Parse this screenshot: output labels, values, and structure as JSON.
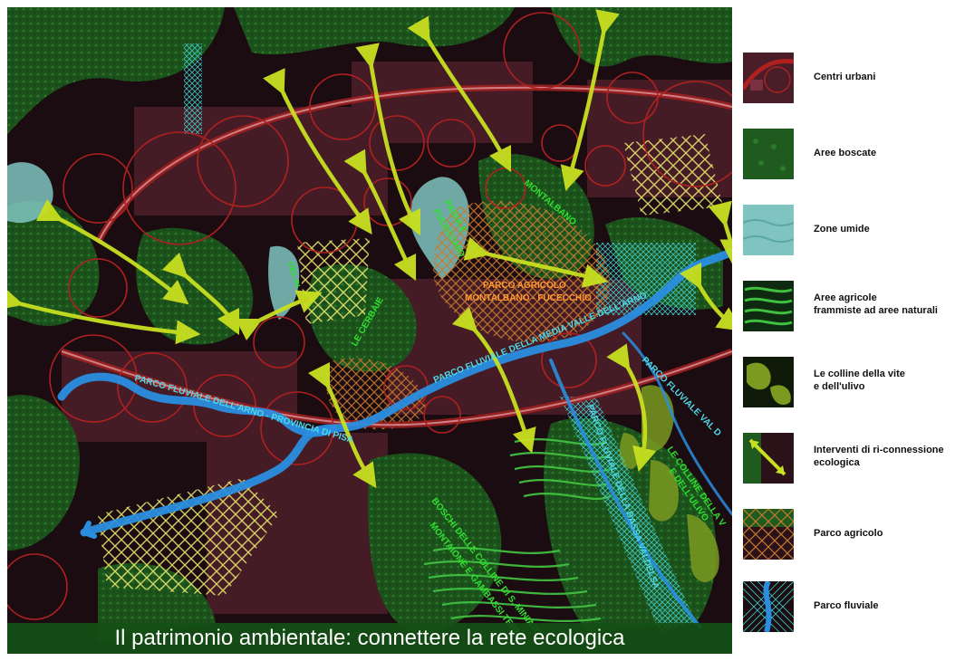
{
  "caption": "Il patrimonio ambientale: connettere la rete ecologica",
  "legend": [
    {
      "label": "Centri urbani",
      "swatch": "urban"
    },
    {
      "label": "Aree boscate",
      "swatch": "forest"
    },
    {
      "label": "Zone umide",
      "swatch": "wetland"
    },
    {
      "label_lines": [
        "Aree agricole",
        "frammiste ad aree naturali"
      ],
      "swatch": "agri-mixed"
    },
    {
      "label_lines": [
        "Le colline della vite",
        "e dell'ulivo"
      ],
      "swatch": "hills"
    },
    {
      "label_lines": [
        "Interventi di ri-connessione",
        "ecologica"
      ],
      "swatch": "reconnection"
    },
    {
      "label": "Parco agricolo",
      "swatch": "agri-park"
    },
    {
      "label": "Parco fluviale",
      "swatch": "river-park"
    }
  ],
  "map_labels": {
    "montalbano": "MONTALBANO",
    "padule": "PADULE",
    "fucecchio": "FUCECCHIO",
    "parco_agricolo_1": "PARCO AGRICOLO",
    "parco_agricolo_2": "MONTALBANO - FUCECCHIO",
    "le_cerbaie": "LE CERBAIE",
    "parco_arno_pisa": "PARCO FLUVIALE DELL'ARNO - PROVINCIA DI PISA",
    "parco_media_valle": "PARCO FLUVIALE DELLA MEDIA VALLE DELL'ARNO",
    "parco_val": "PARCO FLUVIALE VAL D",
    "parco_bassa_valdelsa": "PARCO FLUVIALE DELLA BASSA VALDELSA",
    "colline_1": "LE COLLINE DELLA V",
    "colline_2": "E DELL'ULIVO",
    "boschi_1": "BOSCHI DELLE COLLINE DI S. MINIATO",
    "boschi_2": "MONTAIONE E GAMBASSI TERME",
    "del_pi": "DEL PI"
  },
  "colors": {
    "background": "#1a0c10",
    "forest": "#1f5a1e",
    "urban": "#8a3040",
    "urban_circle": "#b02020",
    "wetland": "#7fc4c0",
    "arrow": "#c8e020",
    "river": "#2a8ee0",
    "agri_park": "#c87a30",
    "label_cyan": "#4fd8e8",
    "label_green": "#30e030",
    "label_orange": "#ff9a30",
    "caption_bar": "#145014"
  },
  "icons": [
    "arrow-icon"
  ]
}
